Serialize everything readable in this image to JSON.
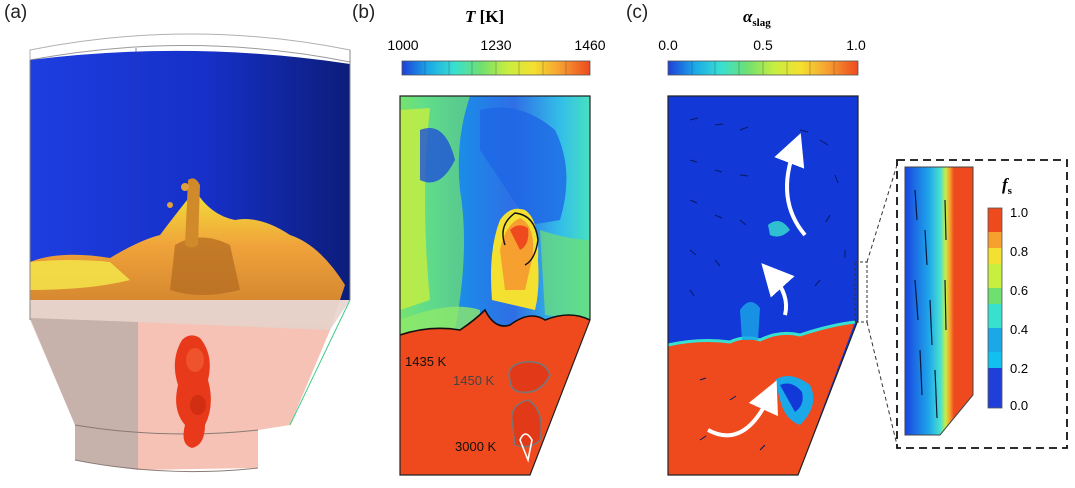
{
  "panels": {
    "a": {
      "label": "(a)"
    },
    "b": {
      "label": "(b)",
      "colorbar": {
        "symbol": "T",
        "unit": "[K]",
        "ticks": [
          "1000",
          "1230",
          "1460"
        ]
      },
      "isotherms": [
        "1435 K",
        "1450 K",
        "3000 K"
      ]
    },
    "c": {
      "label": "(c)",
      "colorbar": {
        "symbol": "α",
        "subscript": "slag",
        "ticks": [
          "0.0",
          "0.5",
          "1.0"
        ]
      }
    },
    "inset": {
      "colorbar": {
        "symbol": "f",
        "subscript": "s",
        "ticks": [
          "1.0",
          "0.8",
          "0.6",
          "0.4",
          "0.2",
          "0.0"
        ]
      }
    }
  },
  "colors": {
    "jet": [
      "#1f3fd8",
      "#1aa8e8",
      "#38e0d0",
      "#6fe070",
      "#c8ee40",
      "#f4e030",
      "#f6a030",
      "#ee4a1e"
    ],
    "slag_red": "#ee4a1e",
    "gas_blue": "#1238d8"
  }
}
